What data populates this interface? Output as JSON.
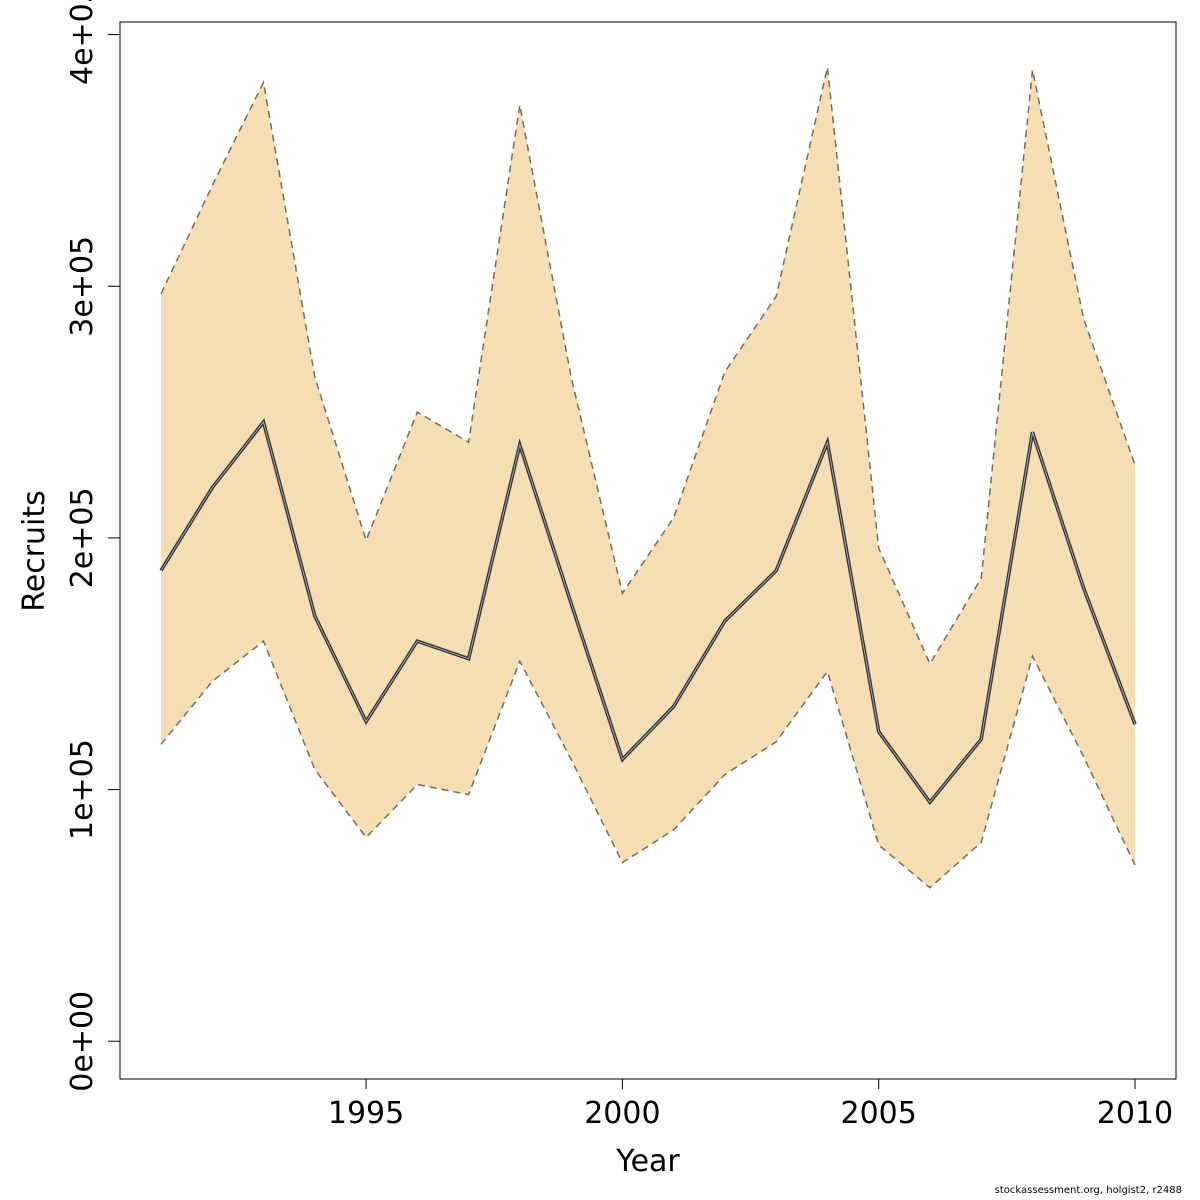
{
  "chart_data": {
    "type": "area",
    "xlabel": "Year",
    "ylabel": "Recruits",
    "xlim": [
      1990.2,
      2010.8
    ],
    "ylim": [
      -15000,
      405000
    ],
    "x_ticks": [
      1995,
      2000,
      2005,
      2010
    ],
    "x_tick_labels": [
      "1995",
      "2000",
      "2005",
      "2010"
    ],
    "y_ticks": [
      0,
      100000,
      200000,
      300000,
      400000
    ],
    "y_tick_labels": [
      "0e+00",
      "1e+05",
      "2e+05",
      "3e+05",
      "4e+05"
    ],
    "grid": false,
    "legend": "none",
    "x": [
      1991,
      1992,
      1993,
      1994,
      1995,
      1996,
      1997,
      1998,
      1999,
      2000,
      2001,
      2002,
      2003,
      2004,
      2005,
      2006,
      2007,
      2008,
      2009,
      2010
    ],
    "series": [
      {
        "role": "estimate",
        "values": [
          187000,
          220000,
          246000,
          169000,
          127000,
          159000,
          152000,
          237000,
          174000,
          112000,
          133000,
          167000,
          187000,
          238000,
          123000,
          95000,
          120000,
          242000,
          180000,
          126000
        ]
      },
      {
        "role": "upper_bound",
        "values": [
          297000,
          340000,
          381000,
          264000,
          199000,
          250000,
          238000,
          372000,
          264000,
          178000,
          208000,
          266000,
          296000,
          387000,
          196000,
          150000,
          184000,
          386000,
          287000,
          229000
        ]
      },
      {
        "role": "lower_bound",
        "values": [
          118000,
          143000,
          159000,
          108000,
          81000,
          102000,
          98000,
          151000,
          112000,
          71000,
          84000,
          106000,
          119000,
          147000,
          78000,
          61000,
          79000,
          153000,
          113000,
          70000
        ]
      }
    ],
    "colors": {
      "band_fill": "#f5deb3",
      "band_edge": "#7a6a5a",
      "line": "#333333"
    }
  },
  "footer": {
    "note": "stockassessment.org, holgist2, r2488"
  }
}
